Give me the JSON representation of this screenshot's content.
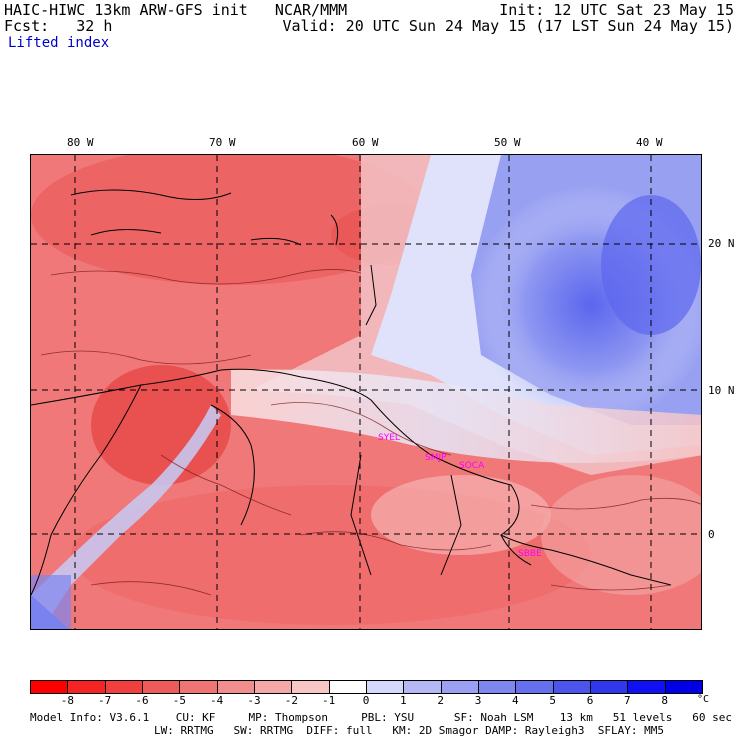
{
  "header": {
    "line1_left": "HAIC-HIWC 13km ARW-GFS init   NCAR/MMM",
    "line1_right": "Init: 12 UTC Sat 23 May 15",
    "line2_left": "Fcst:   32 h",
    "line2_right": "Valid: 20 UTC Sun 24 May 15 (17 LST Sun 24 May 15)",
    "field_name": "Lifted index"
  },
  "map": {
    "lon_labels": [
      "80 W",
      "70 W",
      "60 W",
      "50 W",
      "40 W"
    ],
    "lat_labels": [
      "20 N",
      "10 N",
      "0"
    ],
    "stations": [
      "SYEL",
      "SMJP",
      "SOCA",
      "SBBE"
    ],
    "colors": {
      "warm": "#ef5a5a",
      "cool": "#5a6af0",
      "neutral": "#ffffff"
    }
  },
  "colorbar": {
    "colors": [
      "#ff0000",
      "#f52424",
      "#ef3f3f",
      "#ef5a5a",
      "#f07474",
      "#f28d8d",
      "#f5a8a8",
      "#f9c6c6",
      "#ffffff",
      "#d4d8fa",
      "#b4b9f5",
      "#9aa1f2",
      "#7f87ef",
      "#6670ee",
      "#4b55ec",
      "#3038ec",
      "#1010f4",
      "#0000e6"
    ],
    "ticks": [
      "-8",
      "-7",
      "-6",
      "-5",
      "-4",
      "-3",
      "-2",
      "-1",
      "0",
      "1",
      "2",
      "3",
      "4",
      "5",
      "6",
      "7",
      "8"
    ],
    "unit": "°C"
  },
  "footer": {
    "line1": "Model Info: V3.6.1    CU: KF     MP: Thompson     PBL: YSU      SF: Noah LSM    13 km   51 levels   60 sec",
    "line2": "LW: RRTMG   SW: RRTMG  DIFF: full   KM: 2D Smagor DAMP: Rayleigh3  SFLAY: MM5"
  }
}
